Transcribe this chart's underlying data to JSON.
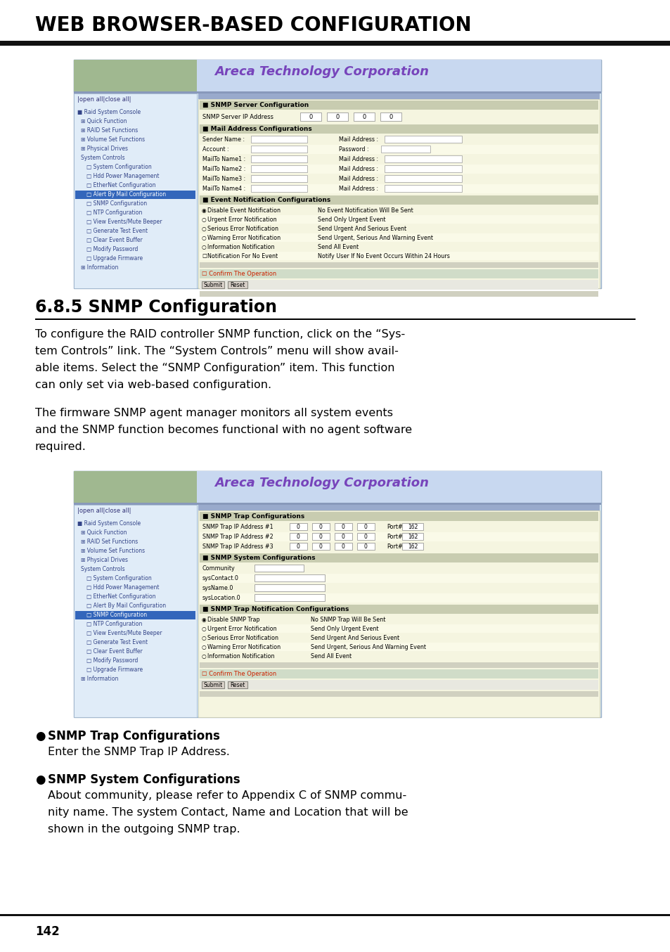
{
  "title": "WEB BROWSER-BASED CONFIGURATION",
  "section": "6.8.5 SNMP Configuration",
  "para1_lines": [
    "To configure the RAID controller SNMP function, click on the “Sys-",
    "tem Controls” link. The “System Controls” menu will show avail-",
    "able items. Select the “SNMP Configuration” item. This function",
    "can only set via web-based configuration."
  ],
  "para2_lines": [
    "The firmware SNMP agent manager monitors all system events",
    "and the SNMP function becomes functional with no agent software",
    "required."
  ],
  "bullet1_title": "SNMP Trap Configurations",
  "bullet1_text": "Enter the SNMP Trap IP Address.",
  "bullet2_title": "SNMP System Configurations",
  "bullet2_lines": [
    "About community, please refer to Appendix C of SNMP commu-",
    "nity name. The system Contact, Name and Location that will be",
    "shown in the outgoing SNMP trap."
  ],
  "page_number": "142",
  "bg_color": "#ffffff",
  "screen1": {
    "title": "Areca Technology Corporation",
    "nav_items": [
      "Raid System Console",
      "Quick Function",
      "RAID Set Functions",
      "Volume Set Functions",
      "Physical Drives",
      "System Controls",
      "System Configuration",
      "Hdd Power Management",
      "EtherNet Configuration",
      "Alert By Mail Configuration",
      "SNMP Configuration",
      "NTP Configuration",
      "View Events/Mute Beeper",
      "Generate Test Event",
      "Clear Event Buffer",
      "Modify Password",
      "Upgrade Firmware",
      "Information"
    ],
    "highlight": "Alert By Mail Configuration",
    "snmp_item": "SNMP Configuration"
  },
  "screen2": {
    "title": "Areca Technology Corporation",
    "nav_items": [
      "Raid System Console",
      "Quick Function",
      "RAID Set Functions",
      "Volume Set Functions",
      "Physical Drives",
      "System Controls",
      "System Configuration",
      "Hdd Power Management",
      "EtherNet Configuration",
      "Alert By Mail Configuration",
      "SNMP Configuration",
      "NTP Configuration",
      "View Events/Mute Beeper",
      "Generate Test Event",
      "Clear Event Buffer",
      "Modify Password",
      "Upgrade Firmware",
      "Information"
    ],
    "highlight": "SNMP Configuration"
  }
}
